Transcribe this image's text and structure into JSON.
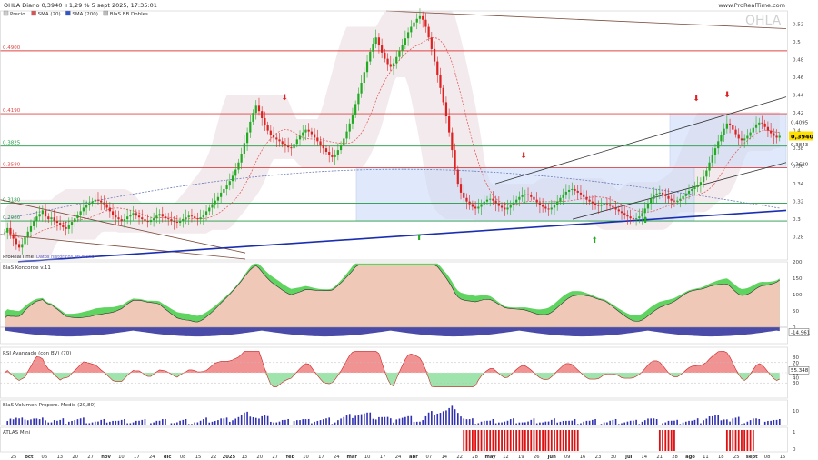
{
  "header": {
    "title": "OHLA Diario 0,3940 +1,29 % 5 sept 2025, 17:35:01",
    "source": "www.ProRealTime.com",
    "watermark": "OHLA",
    "legend": [
      {
        "label": "Precio",
        "color": "#cccccc"
      },
      {
        "label": "SMA (20)",
        "color": "#e05050"
      },
      {
        "label": "SMA (200)",
        "color": "#3355cc"
      },
      {
        "label": "BlaS BB Dobles",
        "color": "#bbbbbb"
      }
    ]
  },
  "colors": {
    "up": "#22aa22",
    "down": "#dd2222",
    "red_level": "#dd4444",
    "green_level": "#229944",
    "trend_blue": "#1a2eb0",
    "channel": "#333333",
    "box": "#c8d8f8",
    "current": "#ffe000"
  },
  "chart_data": [
    {
      "type": "candlestick",
      "title": "OHLA Diario",
      "ylim": [
        0.254,
        0.535
      ],
      "y_ticks": [
        "0.52",
        "0.5",
        "0.48",
        "0.46",
        "0.44",
        "0.42",
        "0.4",
        "0.38",
        "0.36",
        "0.34",
        "0.32",
        "0.3",
        "0.28"
      ],
      "x_ticks": [
        "25",
        "oct",
        "06",
        "13",
        "20",
        "27",
        "nov",
        "10",
        "17",
        "24",
        "dic",
        "08",
        "15",
        "22",
        "2025",
        "13",
        "20",
        "27",
        "feb",
        "10",
        "17",
        "24",
        "mar",
        "10",
        "17",
        "24",
        "abr",
        "07",
        "14",
        "22",
        "28",
        "may",
        "12",
        "19",
        "26",
        "jun",
        "09",
        "16",
        "23",
        "30",
        "jul",
        "14",
        "21",
        "28",
        "ago",
        "11",
        "18",
        "25",
        "sept",
        "08",
        "15"
      ],
      "level_labels": [
        {
          "text": "0.4900",
          "value": 0.49,
          "kind": "red"
        },
        {
          "text": "0.4190",
          "value": 0.419,
          "kind": "red"
        },
        {
          "text": "0.3825",
          "value": 0.3825,
          "kind": "green"
        },
        {
          "text": "0.3580",
          "value": 0.358,
          "kind": "red"
        },
        {
          "text": "0.3180",
          "value": 0.318,
          "kind": "green"
        },
        {
          "text": "0.2980",
          "value": 0.298,
          "kind": "green"
        }
      ],
      "right_labels": [
        {
          "text": "0.4095",
          "value": 0.4095
        },
        {
          "text": "0,3940",
          "value": 0.394,
          "current": true
        },
        {
          "text": "0.3843",
          "value": 0.3843
        },
        {
          "text": "0.3620",
          "value": 0.362
        }
      ],
      "annotation": "ProRealTime",
      "annotation2": "Datos históricos en diario",
      "closes": [
        0.285,
        0.29,
        0.283,
        0.278,
        0.272,
        0.268,
        0.272,
        0.28,
        0.286,
        0.292,
        0.298,
        0.303,
        0.306,
        0.31,
        0.303,
        0.3,
        0.302,
        0.298,
        0.296,
        0.294,
        0.291,
        0.289,
        0.293,
        0.297,
        0.301,
        0.305,
        0.309,
        0.313,
        0.316,
        0.318,
        0.32,
        0.322,
        0.321,
        0.319,
        0.317,
        0.313,
        0.309,
        0.305,
        0.302,
        0.3,
        0.298,
        0.3,
        0.303,
        0.305,
        0.307,
        0.304,
        0.302,
        0.3,
        0.298,
        0.297,
        0.299,
        0.301,
        0.304,
        0.306,
        0.303,
        0.301,
        0.3,
        0.298,
        0.297,
        0.296,
        0.298,
        0.3,
        0.302,
        0.304,
        0.303,
        0.301,
        0.3,
        0.302,
        0.305,
        0.309,
        0.313,
        0.317,
        0.321,
        0.325,
        0.33,
        0.334,
        0.338,
        0.343,
        0.349,
        0.356,
        0.364,
        0.374,
        0.386,
        0.398,
        0.41,
        0.42,
        0.428,
        0.422,
        0.414,
        0.406,
        0.4,
        0.395,
        0.392,
        0.39,
        0.388,
        0.385,
        0.383,
        0.381,
        0.38,
        0.385,
        0.39,
        0.394,
        0.398,
        0.401,
        0.399,
        0.396,
        0.392,
        0.388,
        0.384,
        0.38,
        0.376,
        0.372,
        0.37,
        0.373,
        0.378,
        0.384,
        0.391,
        0.399,
        0.408,
        0.418,
        0.43,
        0.442,
        0.454,
        0.466,
        0.478,
        0.489,
        0.498,
        0.505,
        0.496,
        0.488,
        0.481,
        0.475,
        0.472,
        0.476,
        0.483,
        0.49,
        0.497,
        0.504,
        0.511,
        0.517,
        0.522,
        0.526,
        0.529,
        0.525,
        0.517,
        0.505,
        0.492,
        0.478,
        0.463,
        0.448,
        0.432,
        0.416,
        0.398,
        0.378,
        0.356,
        0.34,
        0.33,
        0.324,
        0.32,
        0.317,
        0.314,
        0.312,
        0.314,
        0.317,
        0.32,
        0.322,
        0.323,
        0.321,
        0.318,
        0.315,
        0.313,
        0.311,
        0.313,
        0.316,
        0.319,
        0.322,
        0.325,
        0.327,
        0.328,
        0.327,
        0.325,
        0.322,
        0.319,
        0.316,
        0.314,
        0.312,
        0.311,
        0.313,
        0.316,
        0.32,
        0.324,
        0.328,
        0.331,
        0.333,
        0.334,
        0.332,
        0.33,
        0.328,
        0.325,
        0.322,
        0.32,
        0.318,
        0.316,
        0.315,
        0.316,
        0.318,
        0.317,
        0.315,
        0.313,
        0.311,
        0.309,
        0.307,
        0.305,
        0.303,
        0.301,
        0.3,
        0.301,
        0.303,
        0.307,
        0.312,
        0.318,
        0.323,
        0.327,
        0.329,
        0.33,
        0.328,
        0.326,
        0.323,
        0.321,
        0.32,
        0.321,
        0.323,
        0.326,
        0.329,
        0.332,
        0.334,
        0.336,
        0.339,
        0.342,
        0.348,
        0.355,
        0.364,
        0.372,
        0.38,
        0.388,
        0.395,
        0.402,
        0.408,
        0.406,
        0.401,
        0.396,
        0.391,
        0.389,
        0.391,
        0.394,
        0.398,
        0.403,
        0.407,
        0.409,
        0.408,
        0.404,
        0.4,
        0.397,
        0.394,
        0.392,
        0.394
      ]
    },
    {
      "type": "area",
      "title": "BlaS Koncorde v.11",
      "ylim": [
        -50,
        200
      ],
      "y_ticks": [
        "200",
        "150",
        "100",
        "50",
        "0"
      ],
      "last_label": "-14.961"
    },
    {
      "type": "area",
      "title": "RSI Avanzado (con BV) (70)",
      "ylim": [
        0,
        100
      ],
      "y_ticks": [
        "80",
        "70",
        "60",
        "50",
        "40",
        "30"
      ],
      "last_label": "55.348"
    },
    {
      "type": "bar",
      "title": "BlaS Volumen Proporc. Medio (20,80)",
      "y_ticks": [
        "10"
      ]
    },
    {
      "type": "bar",
      "title": "ATLAS Mini",
      "y_ticks": [
        "1",
        "0"
      ]
    }
  ]
}
